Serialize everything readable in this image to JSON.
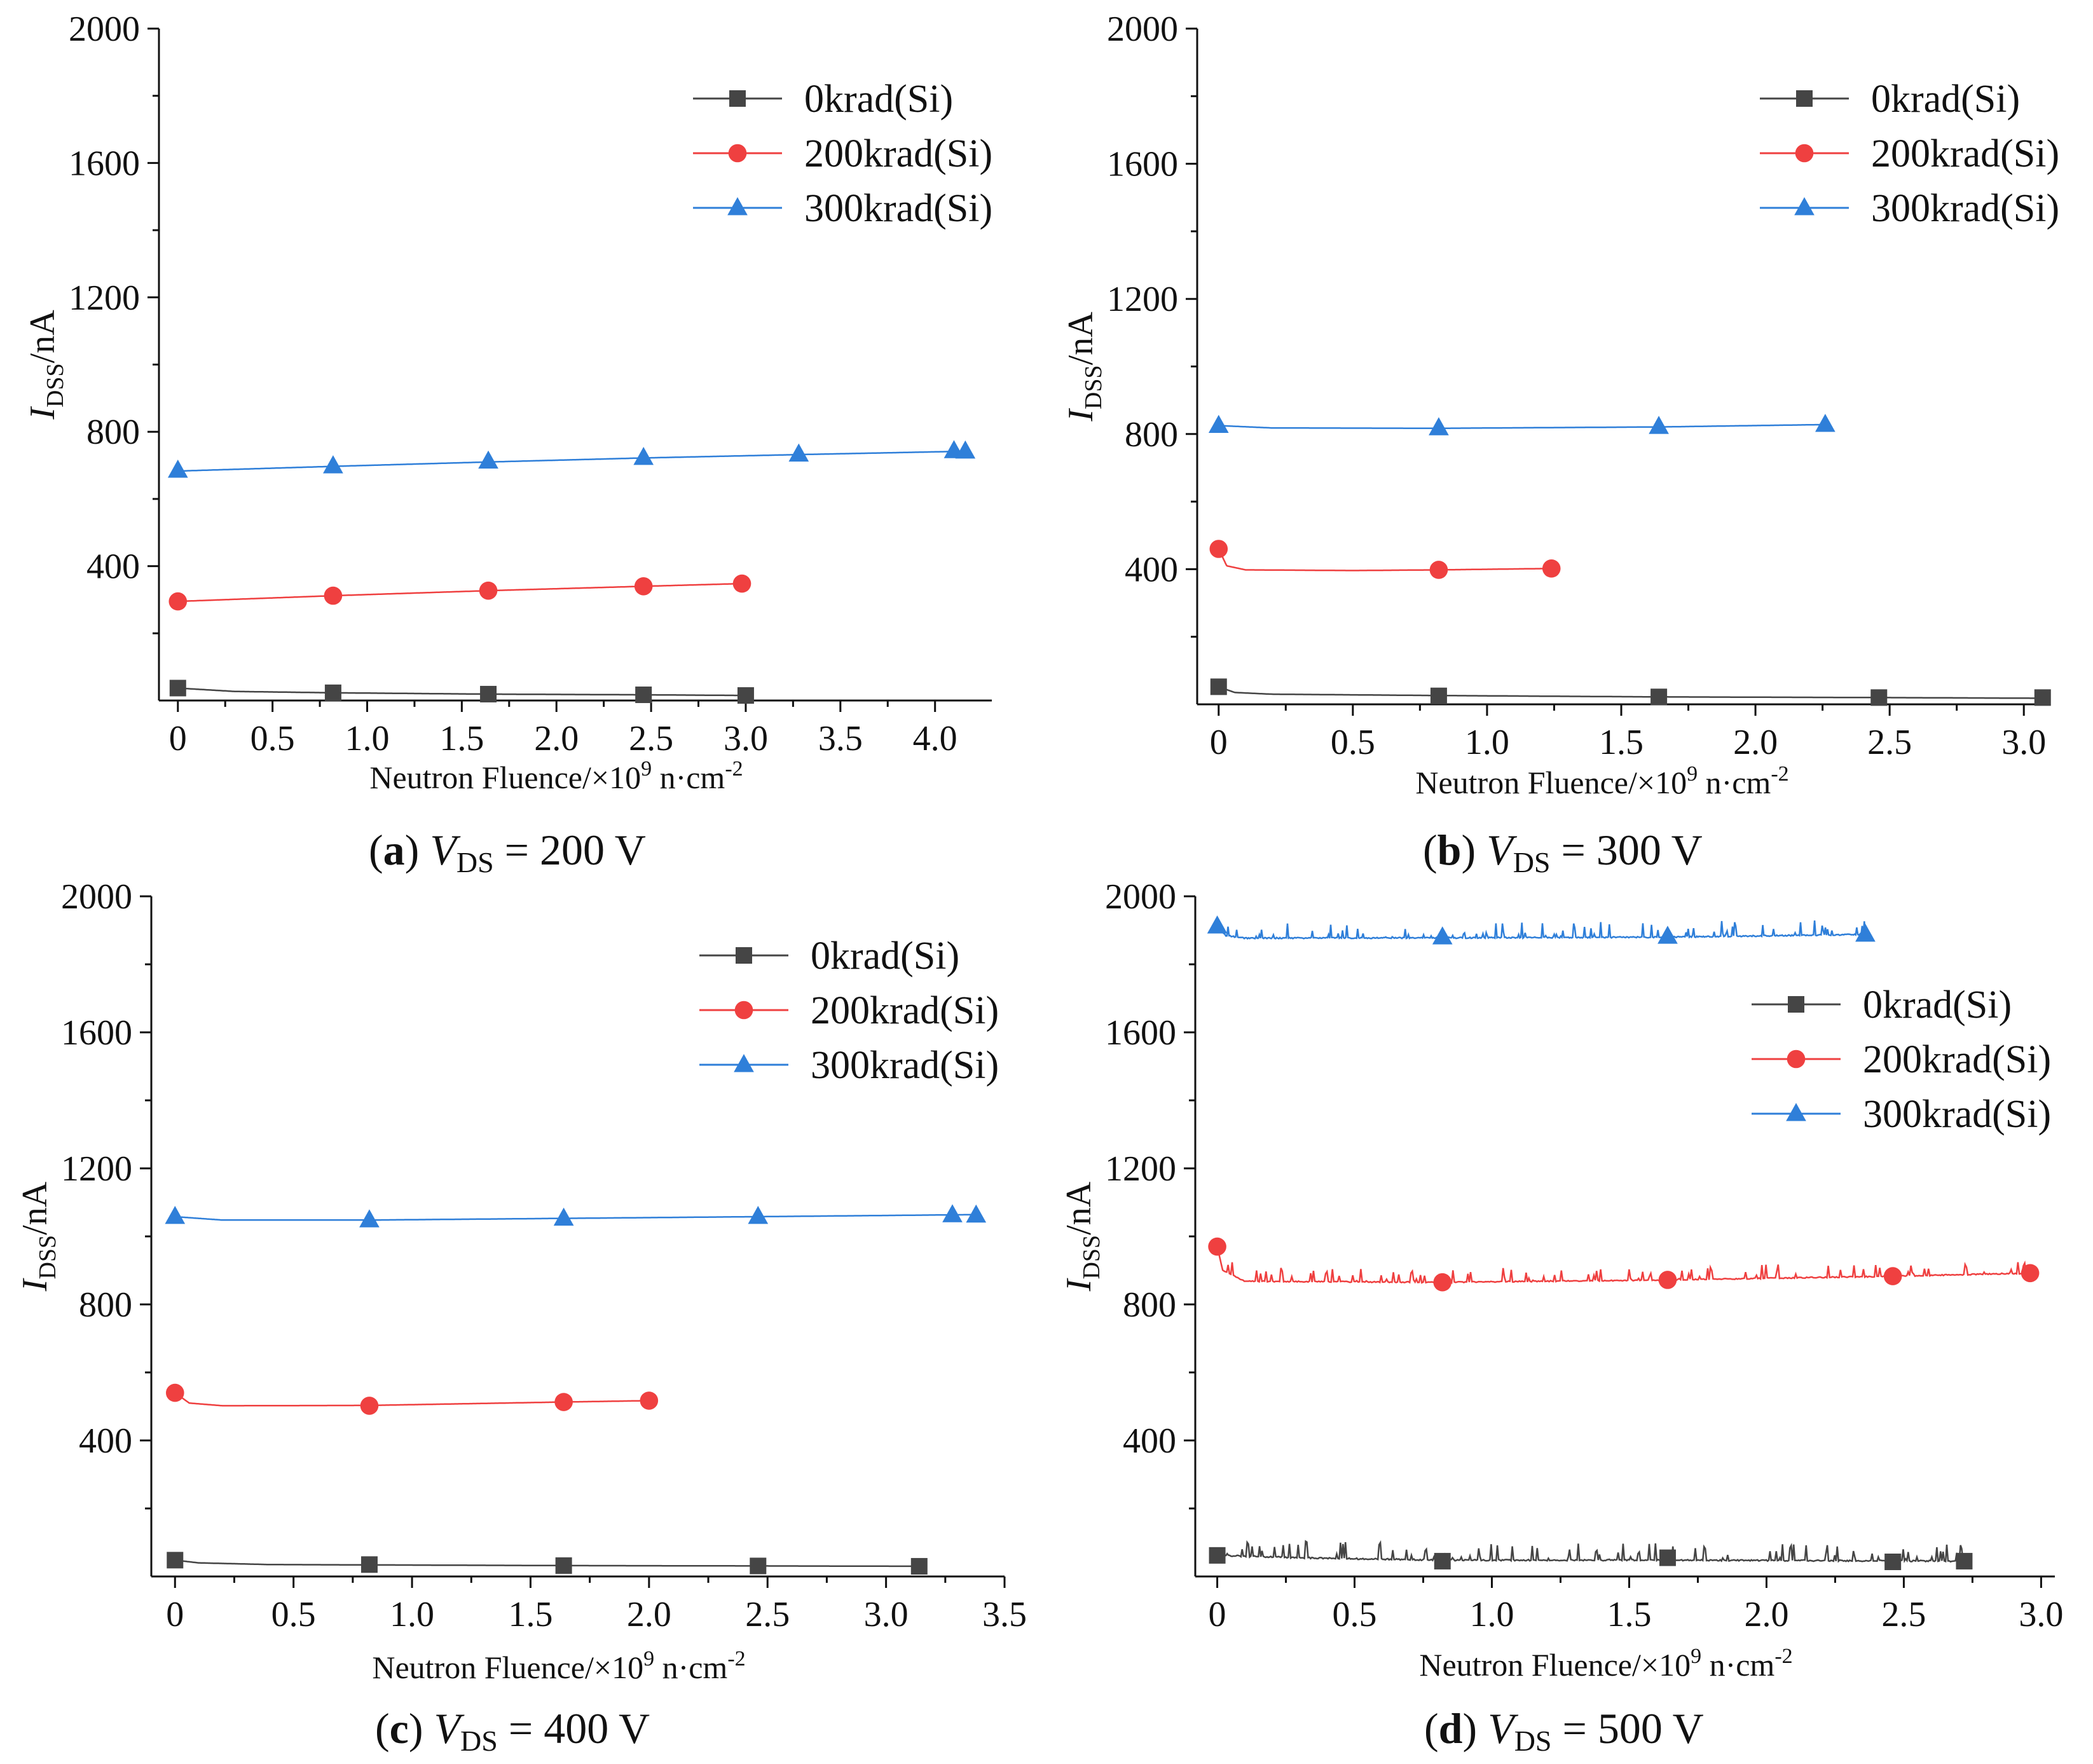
{
  "chart_data": [
    {
      "type": "line",
      "caption": {
        "letter": "(a)",
        "var": "V",
        "sub": "DS",
        "value": "= 200 V"
      },
      "ylabel": {
        "main": "I",
        "sub": "DSS",
        "rest": "/nA"
      },
      "xlabel": {
        "main": "Neutron Fluence/×10",
        "sup": "9",
        "mid": " n·cm",
        "sup2": "-2"
      },
      "xlim": [
        -0.1,
        4.3
      ],
      "ylim": [
        0,
        2000
      ],
      "xticks": [
        "0",
        "0.5",
        "1.0",
        "1.5",
        "2.0",
        "2.5",
        "3.0",
        "3.5",
        "4.0"
      ],
      "yticks": [
        "400",
        "800",
        "1200",
        "1600",
        "2000"
      ],
      "legend_position": "top-right",
      "series": [
        {
          "name": "0krad(Si)",
          "marker": "square",
          "color": "#454545",
          "noise": 0,
          "x": [
            0,
            0.82,
            1.64,
            2.46,
            3.0
          ],
          "y": [
            37,
            23,
            19,
            17,
            15
          ],
          "curve": [
            [
              0,
              37
            ],
            [
              0.3,
              27
            ],
            [
              0.82,
              23
            ],
            [
              1.64,
              19
            ],
            [
              2.46,
              17
            ],
            [
              3.0,
              15
            ]
          ]
        },
        {
          "name": "200krad(Si)",
          "marker": "circle",
          "color": "#ef4040",
          "noise": 0,
          "x": [
            0,
            0.82,
            1.64,
            2.46,
            2.98
          ],
          "y": [
            295,
            312,
            327,
            340,
            348
          ],
          "curve": [
            [
              0,
              295
            ],
            [
              0.82,
              312
            ],
            [
              1.64,
              327
            ],
            [
              2.46,
              340
            ],
            [
              2.98,
              348
            ]
          ]
        },
        {
          "name": "300krad(Si)",
          "marker": "triangle",
          "color": "#2f7fd9",
          "noise": 0,
          "x": [
            0,
            0.82,
            1.64,
            2.46,
            3.28,
            4.1,
            4.16
          ],
          "y": [
            685,
            698,
            712,
            723,
            733,
            743,
            742
          ],
          "curve": [
            [
              0,
              683
            ],
            [
              0.82,
              697
            ],
            [
              1.64,
              710
            ],
            [
              2.46,
              722
            ],
            [
              3.28,
              732
            ],
            [
              4.16,
              742
            ]
          ]
        }
      ]
    },
    {
      "type": "line",
      "caption": {
        "letter": "(b)",
        "var": "V",
        "sub": "DS",
        "value": "= 300 V"
      },
      "ylabel": {
        "main": "I",
        "sub": "DSS",
        "rest": "/nA"
      },
      "xlabel": {
        "main": "Neutron Fluence/×10",
        "sup": "9",
        "mid": " n·cm",
        "sup2": "-2"
      },
      "xlim": [
        -0.08,
        3.08
      ],
      "ylim": [
        0,
        2000
      ],
      "xticks": [
        "0",
        "0.5",
        "1.0",
        "1.5",
        "2.0",
        "2.5",
        "3.0"
      ],
      "yticks": [
        "400",
        "800",
        "1200",
        "1600",
        "2000"
      ],
      "legend_position": "top-right",
      "series": [
        {
          "name": "0krad(Si)",
          "marker": "square",
          "color": "#454545",
          "noise": 0,
          "x": [
            0,
            0.82,
            1.64,
            2.46,
            3.07
          ],
          "y": [
            52,
            25,
            22,
            20,
            20
          ],
          "curve": [
            [
              0,
              52
            ],
            [
              0.06,
              35
            ],
            [
              0.2,
              30
            ],
            [
              0.82,
              26
            ],
            [
              1.64,
              22
            ],
            [
              2.46,
              20
            ],
            [
              3.07,
              18
            ]
          ]
        },
        {
          "name": "200krad(Si)",
          "marker": "circle",
          "color": "#ef4040",
          "noise": 0,
          "x": [
            0,
            0.82,
            1.24
          ],
          "y": [
            460,
            398,
            402
          ],
          "curve": [
            [
              0,
              460
            ],
            [
              0.03,
              410
            ],
            [
              0.1,
              398
            ],
            [
              0.5,
              396
            ],
            [
              0.82,
              398
            ],
            [
              1.24,
              402
            ]
          ]
        },
        {
          "name": "300krad(Si)",
          "marker": "triangle",
          "color": "#2f7fd9",
          "noise": 0,
          "x": [
            0,
            0.82,
            1.64,
            2.26
          ],
          "y": [
            825,
            818,
            822,
            828
          ],
          "curve": [
            [
              0,
              825
            ],
            [
              0.2,
              818
            ],
            [
              0.82,
              817
            ],
            [
              1.64,
              821
            ],
            [
              2.26,
              828
            ]
          ]
        }
      ]
    },
    {
      "type": "line",
      "caption": {
        "letter": "(c)",
        "var": "V",
        "sub": "DS",
        "value": "= 400 V"
      },
      "ylabel": {
        "main": "I",
        "sub": "DSS",
        "rest": "/nA"
      },
      "xlabel": {
        "main": "Neutron Fluence/×10",
        "sup": "9",
        "mid": " n·cm",
        "sup2": "-2"
      },
      "xlim": [
        -0.1,
        3.5
      ],
      "ylim": [
        0,
        2000
      ],
      "xticks": [
        "0",
        "0.5",
        "1.0",
        "1.5",
        "2.0",
        "2.5",
        "3.0",
        "3.5"
      ],
      "yticks": [
        "400",
        "800",
        "1200",
        "1600",
        "2000"
      ],
      "legend_position": "top-right",
      "series": [
        {
          "name": "0krad(Si)",
          "marker": "square",
          "color": "#454545",
          "noise": 0,
          "x": [
            0,
            0.82,
            1.64,
            2.46,
            3.14
          ],
          "y": [
            48,
            35,
            32,
            31,
            30
          ],
          "curve": [
            [
              0,
              48
            ],
            [
              0.1,
              40
            ],
            [
              0.4,
              35
            ],
            [
              0.82,
              34
            ],
            [
              1.64,
              32
            ],
            [
              2.46,
              31
            ],
            [
              3.14,
              30
            ]
          ]
        },
        {
          "name": "200krad(Si)",
          "marker": "circle",
          "color": "#ef4040",
          "noise": 0,
          "x": [
            0,
            0.82,
            1.64,
            2.0
          ],
          "y": [
            540,
            502,
            513,
            517
          ],
          "curve": [
            [
              0,
              540
            ],
            [
              0.06,
              510
            ],
            [
              0.2,
              502
            ],
            [
              0.82,
              503
            ],
            [
              1.64,
              513
            ],
            [
              2.0,
              517
            ]
          ]
        },
        {
          "name": "300krad(Si)",
          "marker": "triangle",
          "color": "#2f7fd9",
          "noise": 0,
          "x": [
            0,
            0.82,
            1.64,
            2.46,
            3.28,
            3.38
          ],
          "y": [
            1058,
            1048,
            1053,
            1058,
            1063,
            1062
          ],
          "curve": [
            [
              0,
              1058
            ],
            [
              0.2,
              1048
            ],
            [
              0.82,
              1048
            ],
            [
              1.64,
              1053
            ],
            [
              2.46,
              1058
            ],
            [
              3.38,
              1064
            ]
          ]
        }
      ]
    },
    {
      "type": "line",
      "caption": {
        "letter": "(d)",
        "var": "V",
        "sub": "DS",
        "value": "= 500 V"
      },
      "ylabel": {
        "main": "I",
        "sub": "DSS",
        "rest": "/nA"
      },
      "xlabel": {
        "main": "Neutron Fluence/×10",
        "sup": "9",
        "mid": " n·cm",
        "sup2": "-2"
      },
      "xlim": [
        -0.08,
        3.05
      ],
      "ylim": [
        0,
        2000
      ],
      "xticks": [
        "0",
        "0.5",
        "1.0",
        "1.5",
        "2.0",
        "2.5",
        "3.0"
      ],
      "yticks": [
        "400",
        "800",
        "1200",
        "1600",
        "2000"
      ],
      "legend_position": "middle-right",
      "series": [
        {
          "name": "0krad(Si)",
          "marker": "square",
          "color": "#454545",
          "noise": 50,
          "x": [
            0,
            0.82,
            1.64,
            2.46,
            2.72
          ],
          "y": [
            62,
            45,
            55,
            43,
            45
          ],
          "curve": [
            [
              0,
              62
            ],
            [
              0.3,
              55
            ],
            [
              0.82,
              48
            ],
            [
              1.64,
              48
            ],
            [
              2.46,
              46
            ],
            [
              2.72,
              45
            ]
          ]
        },
        {
          "name": "200krad(Si)",
          "marker": "circle",
          "color": "#ef4040",
          "noise": 40,
          "x": [
            0,
            0.82,
            1.64,
            2.46,
            2.96
          ],
          "y": [
            970,
            865,
            872,
            883,
            892
          ],
          "curve": [
            [
              0,
              970
            ],
            [
              0.02,
              900
            ],
            [
              0.1,
              868
            ],
            [
              0.82,
              865
            ],
            [
              1.64,
              872
            ],
            [
              2.46,
              883
            ],
            [
              2.96,
              892
            ]
          ]
        },
        {
          "name": "300krad(Si)",
          "marker": "triangle",
          "color": "#2f7fd9",
          "noise": 45,
          "x": [
            0,
            0.82,
            1.64,
            2.36
          ],
          "y": [
            1912,
            1880,
            1882,
            1888
          ],
          "curve": [
            [
              0,
              1912
            ],
            [
              0.03,
              1885
            ],
            [
              0.1,
              1877
            ],
            [
              0.82,
              1878
            ],
            [
              1.64,
              1880
            ],
            [
              2.36,
              1888
            ]
          ]
        }
      ]
    }
  ]
}
